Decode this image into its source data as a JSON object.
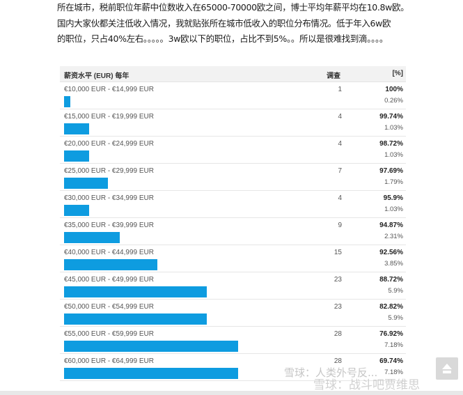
{
  "intro": {
    "line1": "所在城市，税前职位年薪中位数收入在65000-70000欧之间，博士平均年薪平均在10.8w欧。",
    "line2": "国内大家伙都关注低收入情况，我就贴张所在城市低收入的职位分布情况。低于年入6w欧",
    "line3": "的职位，只占40%左右。。。。。3w欧以下的职位，占比不到5%。。所以是很难找到滴。。。。"
  },
  "table": {
    "header_salary": "薪资水平 (EUR) 每年",
    "header_survey": "调查",
    "header_percent": "[%]",
    "bar_color": "#0e9ce0",
    "rows": [
      {
        "range": "€10,000 EUR - €14,999 EUR",
        "count": "1",
        "cumulative": "100%",
        "share": "0.26%"
      },
      {
        "range": "€15,000 EUR - €19,999 EUR",
        "count": "4",
        "cumulative": "99.74%",
        "share": "1.03%"
      },
      {
        "range": "€20,000 EUR - €24,999 EUR",
        "count": "4",
        "cumulative": "98.72%",
        "share": "1.03%"
      },
      {
        "range": "€25,000 EUR - €29,999 EUR",
        "count": "7",
        "cumulative": "97.69%",
        "share": "1.79%"
      },
      {
        "range": "€30,000 EUR - €34,999 EUR",
        "count": "4",
        "cumulative": "95.9%",
        "share": "1.03%"
      },
      {
        "range": "€35,000 EUR - €39,999 EUR",
        "count": "9",
        "cumulative": "94.87%",
        "share": "2.31%"
      },
      {
        "range": "€40,000 EUR - €44,999 EUR",
        "count": "15",
        "cumulative": "92.56%",
        "share": "3.85%"
      },
      {
        "range": "€45,000 EUR - €49,999 EUR",
        "count": "23",
        "cumulative": "88.72%",
        "share": "5.9%"
      },
      {
        "range": "€50,000 EUR - €54,999 EUR",
        "count": "23",
        "cumulative": "82.82%",
        "share": "5.9%"
      },
      {
        "range": "€55,000 EUR - €59,999 EUR",
        "count": "28",
        "cumulative": "76.92%",
        "share": "7.18%"
      },
      {
        "range": "€60,000 EUR - €64,999 EUR",
        "count": "28",
        "cumulative": "69.74%",
        "share": "7.18%"
      }
    ]
  },
  "watermark": {
    "text1": "雪球：人类外号反...",
    "text2": "雪球：战斗吧贾维思"
  },
  "scroll_top_icon": "arrow-up-icon"
}
